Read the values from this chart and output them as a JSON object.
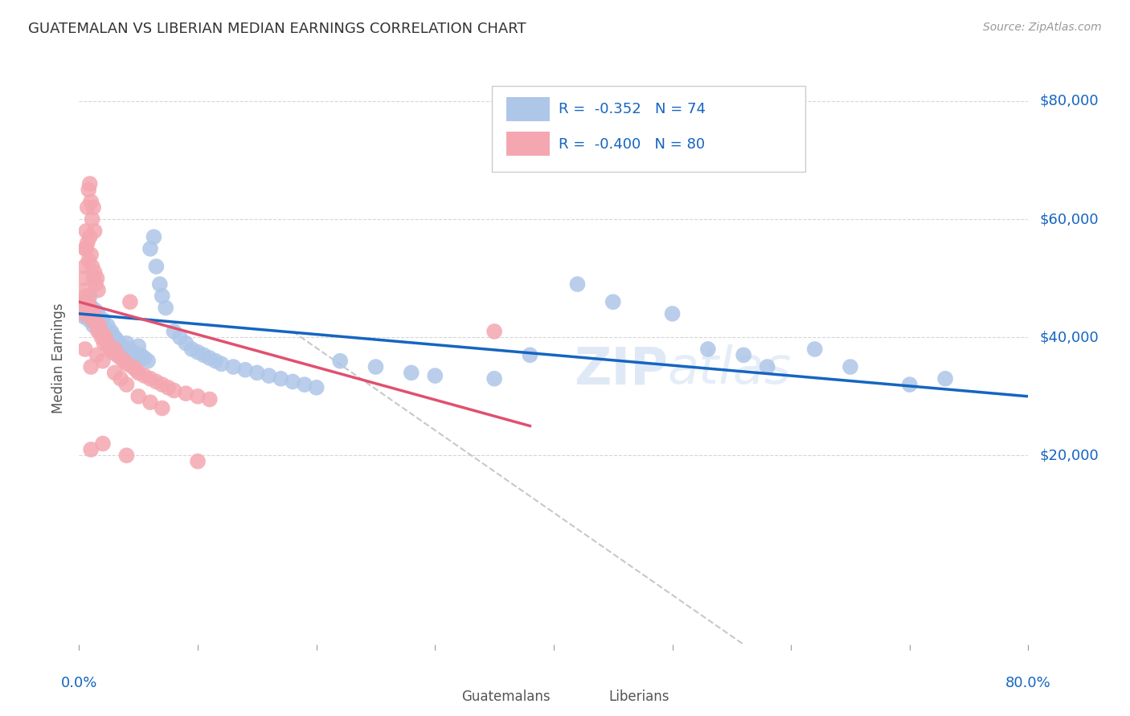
{
  "title": "GUATEMALAN VS LIBERIAN MEDIAN EARNINGS CORRELATION CHART",
  "source": "Source: ZipAtlas.com",
  "ylabel": "Median Earnings",
  "yticks": [
    20000,
    40000,
    60000,
    80000
  ],
  "ytick_labels": [
    "$20,000",
    "$40,000",
    "$60,000",
    "$80,000"
  ],
  "xlim": [
    0.0,
    0.8
  ],
  "ylim": [
    -12000,
    85000
  ],
  "watermark_text": "ZIPatlas",
  "legend_guatemalan_R": -0.352,
  "legend_guatemalan_N": 74,
  "legend_liberian_R": -0.4,
  "legend_liberian_N": 80,
  "guatemalan_scatter": [
    [
      0.003,
      44000
    ],
    [
      0.004,
      43500
    ],
    [
      0.005,
      46000
    ],
    [
      0.006,
      45000
    ],
    [
      0.007,
      44000
    ],
    [
      0.008,
      43000
    ],
    [
      0.009,
      47000
    ],
    [
      0.01,
      44000
    ],
    [
      0.011,
      45000
    ],
    [
      0.012,
      42000
    ],
    [
      0.013,
      43000
    ],
    [
      0.014,
      44500
    ],
    [
      0.015,
      43000
    ],
    [
      0.016,
      44000
    ],
    [
      0.017,
      42500
    ],
    [
      0.018,
      41000
    ],
    [
      0.019,
      42000
    ],
    [
      0.02,
      43000
    ],
    [
      0.022,
      41000
    ],
    [
      0.024,
      42000
    ],
    [
      0.025,
      40000
    ],
    [
      0.027,
      41000
    ],
    [
      0.028,
      40500
    ],
    [
      0.03,
      40000
    ],
    [
      0.032,
      39500
    ],
    [
      0.034,
      39000
    ],
    [
      0.036,
      38500
    ],
    [
      0.038,
      38000
    ],
    [
      0.04,
      39000
    ],
    [
      0.042,
      38000
    ],
    [
      0.045,
      37500
    ],
    [
      0.048,
      37000
    ],
    [
      0.05,
      38500
    ],
    [
      0.052,
      37000
    ],
    [
      0.055,
      36500
    ],
    [
      0.058,
      36000
    ],
    [
      0.06,
      55000
    ],
    [
      0.063,
      57000
    ],
    [
      0.065,
      52000
    ],
    [
      0.068,
      49000
    ],
    [
      0.07,
      47000
    ],
    [
      0.073,
      45000
    ],
    [
      0.08,
      41000
    ],
    [
      0.085,
      40000
    ],
    [
      0.09,
      39000
    ],
    [
      0.095,
      38000
    ],
    [
      0.1,
      37500
    ],
    [
      0.105,
      37000
    ],
    [
      0.11,
      36500
    ],
    [
      0.115,
      36000
    ],
    [
      0.12,
      35500
    ],
    [
      0.13,
      35000
    ],
    [
      0.14,
      34500
    ],
    [
      0.15,
      34000
    ],
    [
      0.16,
      33500
    ],
    [
      0.17,
      33000
    ],
    [
      0.18,
      32500
    ],
    [
      0.19,
      32000
    ],
    [
      0.2,
      31500
    ],
    [
      0.22,
      36000
    ],
    [
      0.25,
      35000
    ],
    [
      0.28,
      34000
    ],
    [
      0.3,
      33500
    ],
    [
      0.35,
      33000
    ],
    [
      0.38,
      37000
    ],
    [
      0.42,
      49000
    ],
    [
      0.45,
      46000
    ],
    [
      0.5,
      44000
    ],
    [
      0.53,
      38000
    ],
    [
      0.56,
      37000
    ],
    [
      0.58,
      35000
    ],
    [
      0.62,
      38000
    ],
    [
      0.65,
      35000
    ],
    [
      0.7,
      32000
    ],
    [
      0.73,
      33000
    ]
  ],
  "liberian_scatter": [
    [
      0.003,
      46000
    ],
    [
      0.004,
      50000
    ],
    [
      0.005,
      55000
    ],
    [
      0.006,
      58000
    ],
    [
      0.007,
      62000
    ],
    [
      0.008,
      65000
    ],
    [
      0.009,
      66000
    ],
    [
      0.01,
      63000
    ],
    [
      0.011,
      60000
    ],
    [
      0.012,
      62000
    ],
    [
      0.013,
      58000
    ],
    [
      0.005,
      52000
    ],
    [
      0.006,
      55000
    ],
    [
      0.007,
      56000
    ],
    [
      0.008,
      53000
    ],
    [
      0.009,
      57000
    ],
    [
      0.01,
      54000
    ],
    [
      0.011,
      52000
    ],
    [
      0.012,
      50000
    ],
    [
      0.013,
      51000
    ],
    [
      0.014,
      49000
    ],
    [
      0.015,
      50000
    ],
    [
      0.016,
      48000
    ],
    [
      0.003,
      44000
    ],
    [
      0.004,
      46000
    ],
    [
      0.005,
      48000
    ],
    [
      0.006,
      47000
    ],
    [
      0.007,
      45000
    ],
    [
      0.008,
      46000
    ],
    [
      0.009,
      45000
    ],
    [
      0.01,
      44000
    ],
    [
      0.011,
      43000
    ],
    [
      0.012,
      44000
    ],
    [
      0.013,
      43000
    ],
    [
      0.014,
      42500
    ],
    [
      0.015,
      42000
    ],
    [
      0.016,
      41000
    ],
    [
      0.017,
      42000
    ],
    [
      0.018,
      41000
    ],
    [
      0.019,
      40000
    ],
    [
      0.02,
      40500
    ],
    [
      0.021,
      39000
    ],
    [
      0.022,
      40000
    ],
    [
      0.024,
      39000
    ],
    [
      0.025,
      38500
    ],
    [
      0.027,
      38000
    ],
    [
      0.028,
      37500
    ],
    [
      0.03,
      38000
    ],
    [
      0.032,
      37000
    ],
    [
      0.035,
      36500
    ],
    [
      0.038,
      36000
    ],
    [
      0.04,
      35500
    ],
    [
      0.043,
      46000
    ],
    [
      0.045,
      35000
    ],
    [
      0.048,
      34500
    ],
    [
      0.05,
      34000
    ],
    [
      0.055,
      33500
    ],
    [
      0.06,
      33000
    ],
    [
      0.065,
      32500
    ],
    [
      0.07,
      32000
    ],
    [
      0.075,
      31500
    ],
    [
      0.08,
      31000
    ],
    [
      0.09,
      30500
    ],
    [
      0.1,
      30000
    ],
    [
      0.11,
      29500
    ],
    [
      0.005,
      38000
    ],
    [
      0.01,
      35000
    ],
    [
      0.015,
      37000
    ],
    [
      0.02,
      36000
    ],
    [
      0.03,
      34000
    ],
    [
      0.035,
      33000
    ],
    [
      0.04,
      32000
    ],
    [
      0.05,
      30000
    ],
    [
      0.06,
      29000
    ],
    [
      0.07,
      28000
    ],
    [
      0.04,
      20000
    ],
    [
      0.1,
      19000
    ],
    [
      0.01,
      21000
    ],
    [
      0.02,
      22000
    ],
    [
      0.35,
      41000
    ]
  ],
  "blue_line": {
    "x0": 0.0,
    "y0": 44000,
    "x1": 0.8,
    "y1": 30000
  },
  "pink_line": {
    "x0": 0.0,
    "y0": 46000,
    "x1": 0.38,
    "y1": 25000
  },
  "gray_line": {
    "x0": 0.18,
    "y0": 41000,
    "x1": 0.56,
    "y1": -12000
  },
  "scatter_blue_color": "#aec6e8",
  "scatter_pink_color": "#f4a7b0",
  "trend_blue_color": "#1565c0",
  "trend_pink_color": "#e05070",
  "trend_gray_color": "#c8c8c8",
  "background_color": "#ffffff",
  "grid_color": "#cccccc",
  "title_color": "#333333",
  "tick_label_color": "#1565c0"
}
